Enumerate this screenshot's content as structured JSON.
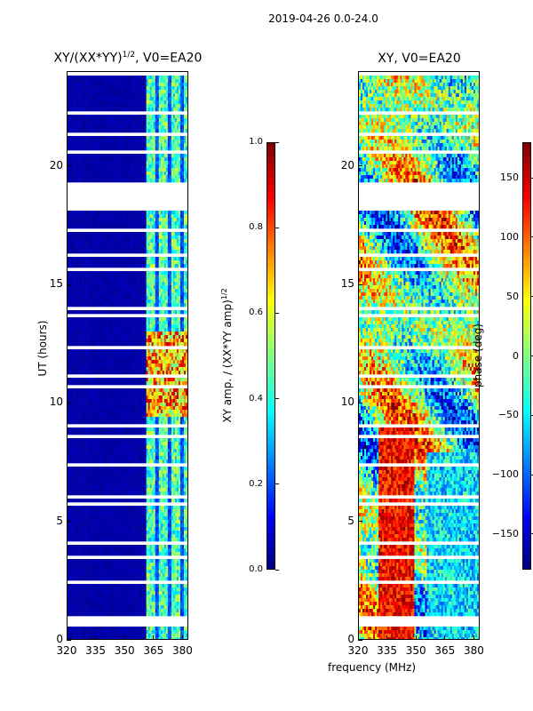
{
  "suptitle": "2019-04-26 0.0-24.0",
  "xlabel": "frequency (MHz)",
  "ylabel": "UT (hours)",
  "cbar_left_label": "XY amp. / (XX*YY amp)",
  "cbar_left_label_sup": "1/2",
  "cbar_right_label": "phase (deg)",
  "chart_data": [
    {
      "type": "heatmap",
      "title": "XY/(XX*YY)",
      "title_sup": "1/2",
      "title_suffix": ", V0=EA20",
      "colormap": "jet",
      "x_ticks": [
        320,
        335,
        350,
        365,
        380
      ],
      "x_range": [
        320,
        383
      ],
      "y_ticks": [
        0,
        5,
        10,
        15,
        20
      ],
      "y_range": [
        0,
        24
      ],
      "colorbar": {
        "range": [
          0.0,
          1.0
        ],
        "ticks": [
          "0.0",
          "0.2",
          "0.4",
          "0.6",
          "0.8",
          "1.0"
        ]
      }
    },
    {
      "type": "heatmap",
      "title": "XY, V0=EA20",
      "colormap": "jet",
      "x_ticks": [
        320,
        335,
        350,
        365,
        380
      ],
      "x_range": [
        320,
        383
      ],
      "y_ticks": [
        0,
        5,
        10,
        15,
        20
      ],
      "y_range": [
        0,
        24
      ],
      "colorbar": {
        "range": [
          -180,
          180
        ],
        "ticks": [
          "−150",
          "−100",
          "−50",
          "0",
          "50",
          "100",
          "150"
        ]
      }
    }
  ]
}
